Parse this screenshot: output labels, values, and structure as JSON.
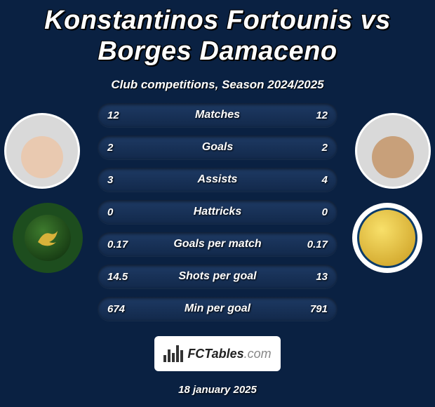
{
  "background_color": "#0a2142",
  "title": {
    "player1": "Konstantinos Fortounis",
    "vs": "vs",
    "player2": "Borges Damaceno",
    "fontsize": 38,
    "color": "#ffffff"
  },
  "subtitle": "Club competitions, Season 2024/2025",
  "rows": [
    {
      "label": "Matches",
      "left": "12",
      "right": "12"
    },
    {
      "label": "Goals",
      "left": "2",
      "right": "2"
    },
    {
      "label": "Assists",
      "left": "3",
      "right": "4"
    },
    {
      "label": "Hattricks",
      "left": "0",
      "right": "0"
    },
    {
      "label": "Goals per match",
      "left": "0.17",
      "right": "0.17"
    },
    {
      "label": "Shots per goal",
      "left": "14.5",
      "right": "13"
    },
    {
      "label": "Min per goal",
      "left": "674",
      "right": "791"
    }
  ],
  "row_style": {
    "height": 34,
    "border_radius": 17,
    "bg_top": "#1e3a64",
    "bg_bottom": "#12294b",
    "label_fontsize": 16,
    "value_fontsize": 15,
    "gap": 12,
    "container_width": 342
  },
  "avatars": {
    "size": 108,
    "border_color": "#ffffff",
    "border_width": 3,
    "left_skin": "#e9c9b0",
    "right_skin": "#c8a07a"
  },
  "clubs": {
    "size": 100,
    "left": {
      "bg": "#1d4d1e",
      "accent": "#d8b23a",
      "name": "khaleej-fc"
    },
    "right": {
      "bg": "#ffffff",
      "accent_outer": "#c99a1e",
      "accent_inner": "#f8e06a",
      "border": "#0a3b6a",
      "name": "al-nassr"
    }
  },
  "logo": {
    "brand": "FCTables",
    "suffix": ".com",
    "box_bg": "#ffffff",
    "text_color": "#222222",
    "suffix_color": "#888888"
  },
  "date": "18 january 2025"
}
